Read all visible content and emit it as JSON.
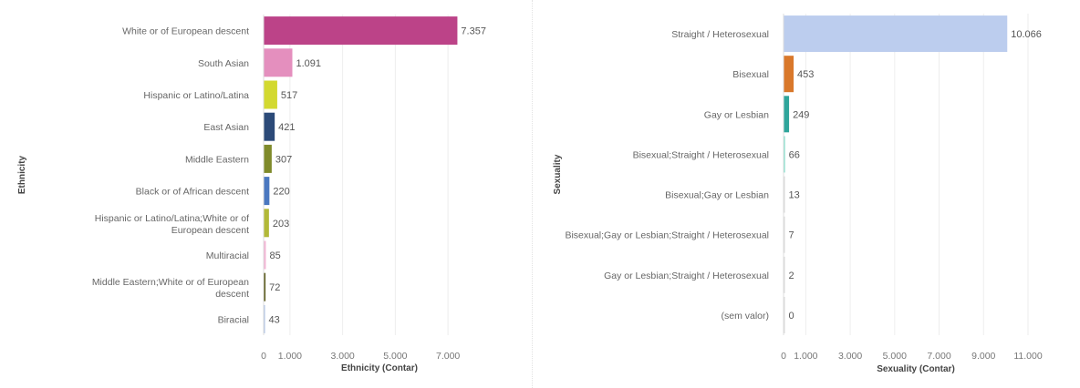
{
  "chart_data": [
    {
      "type": "bar",
      "orientation": "horizontal",
      "xlabel": "Ethnicity (Contar)",
      "ylabel": "Ethnicity",
      "xlim": [
        0,
        8000
      ],
      "xticks": [
        0,
        1000,
        3000,
        5000,
        7000
      ],
      "xtick_labels": [
        "0",
        "1.000",
        "3.000",
        "5.000",
        "7.000"
      ],
      "grid": true,
      "categories": [
        "White or of European descent",
        "South Asian",
        "Hispanic or Latino/Latina",
        "East Asian",
        "Middle Eastern",
        "Black or of African descent",
        "Hispanic or Latino/Latina;White or of European descent",
        "Multiracial",
        "Middle Eastern;White or of European descent",
        "Biracial"
      ],
      "values": [
        7357,
        1091,
        517,
        421,
        307,
        220,
        203,
        85,
        72,
        43
      ],
      "value_labels": [
        "7.357",
        "1.091",
        "517",
        "421",
        "307",
        "220",
        "203",
        "85",
        "72",
        "43"
      ],
      "colors": [
        "#bc4388",
        "#e48fbe",
        "#d3d930",
        "#2c4a78",
        "#7f8a2a",
        "#4a78c0",
        "#b2b938",
        "#f3b5d5",
        "#5a5a1c",
        "#a9bfe4"
      ]
    },
    {
      "type": "bar",
      "orientation": "horizontal",
      "xlabel": "Sexuality (Contar)",
      "ylabel": "Sexuality",
      "xlim": [
        0,
        11000
      ],
      "xticks": [
        0,
        1000,
        3000,
        5000,
        7000,
        9000,
        11000
      ],
      "xtick_labels": [
        "0",
        "1.000",
        "3.000",
        "5.000",
        "7.000",
        "9.000",
        "11.000"
      ],
      "grid": true,
      "categories": [
        "Straight / Heterosexual",
        "Bisexual",
        "Gay or Lesbian",
        "Bisexual;Straight / Heterosexual",
        "Bisexual;Gay or Lesbian",
        "Bisexual;Gay or Lesbian;Straight / Heterosexual",
        "Gay or Lesbian;Straight / Heterosexual",
        "(sem valor)"
      ],
      "values": [
        10066,
        453,
        249,
        66,
        13,
        7,
        2,
        0
      ],
      "value_labels": [
        "10.066",
        "453",
        "249",
        "66",
        "13",
        "7",
        "2",
        "0"
      ],
      "colors": [
        "#bccdee",
        "#d9782b",
        "#2fa59b",
        "#7fe0cc",
        "#d8d8d8",
        "#d8d8d8",
        "#d8d8d8",
        "#d8d8d8"
      ]
    }
  ]
}
